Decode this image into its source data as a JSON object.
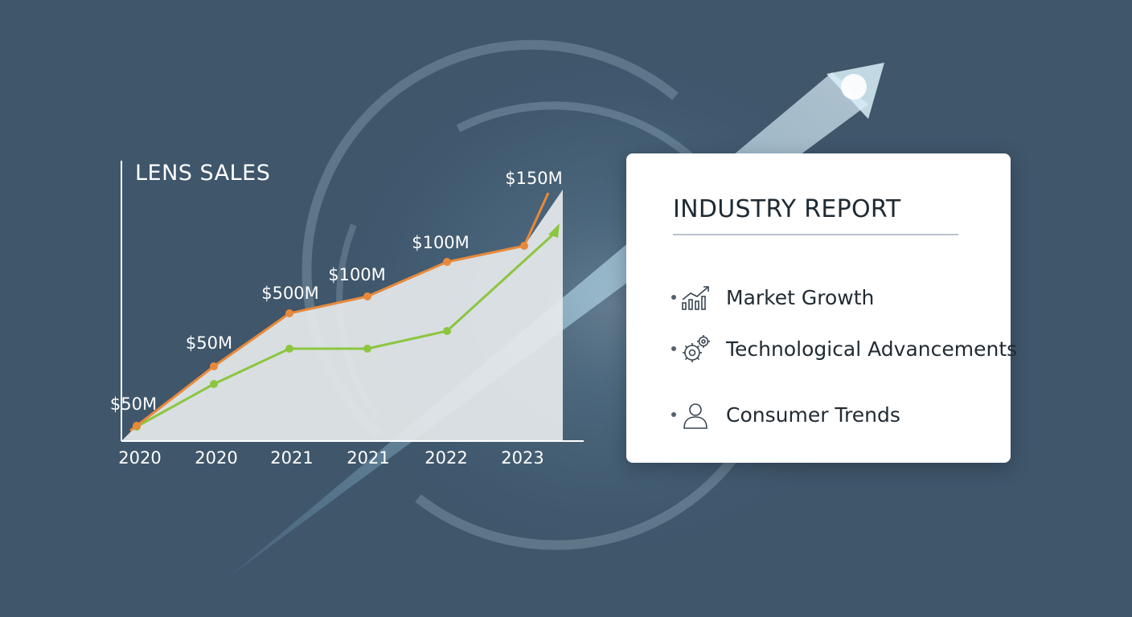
{
  "chart_data": {
    "type": "line",
    "title": "LENS SALES",
    "categories": [
      "2020",
      "2020",
      "2021",
      "2021",
      "2022",
      "2023"
    ],
    "series": [
      {
        "values": [
          50,
          50,
          500,
          100,
          100,
          150
        ],
        "data_labels": [
          "$50M",
          "$50M",
          "$500M",
          "$100M",
          "$100M",
          "$150M"
        ],
        "color": "#e8893a"
      },
      {
        "values": [
          10,
          48,
          70,
          70,
          82,
          150
        ],
        "color": "#8cc63f"
      }
    ],
    "grid": false,
    "legend": "none"
  },
  "report": {
    "title": "INDUSTRY REPORT",
    "items": [
      {
        "label": "Market Growth",
        "icon": "bar-chart-trend-icon"
      },
      {
        "label": "Technological Advancements",
        "icon": "gears-icon"
      },
      {
        "label": "Consumer Trends",
        "icon": "user-icon"
      }
    ]
  },
  "colors": {
    "background": "#3f566b",
    "orange_series": "#e8893a",
    "green_series": "#8cc63f",
    "panel": "#ffffff"
  }
}
